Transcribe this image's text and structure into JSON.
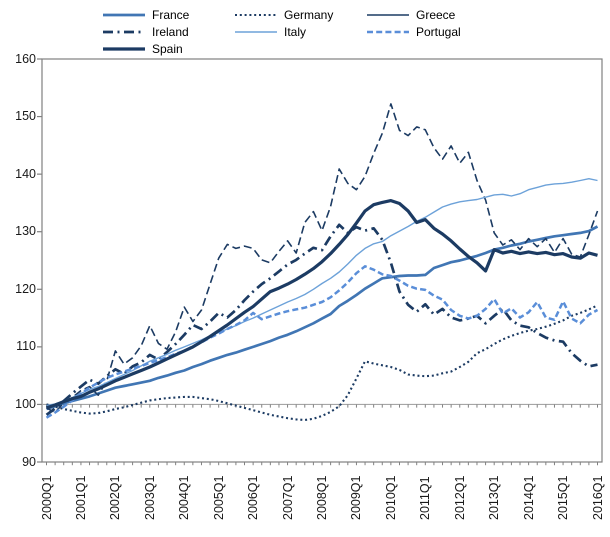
{
  "chart_data": {
    "type": "line",
    "title": "",
    "xlabel": "",
    "ylabel": "",
    "ylim": [
      90,
      160
    ],
    "y_ticks": [
      160,
      150,
      140,
      130,
      120,
      110,
      100,
      90
    ],
    "baseline_gridline": 100,
    "grid": "horizontal-at-100-only",
    "legend_position": "top",
    "x_unit": "quarter",
    "x_range": [
      "2000Q1",
      "2016Q1"
    ],
    "x_tick_labels": [
      "2000Q1",
      "2001Q1",
      "2002Q1",
      "2003Q1",
      "2004Q1",
      "2005Q1",
      "2006Q1",
      "2007Q1",
      "2008Q1",
      "2009Q1",
      "2010Q1",
      "2011Q1",
      "2012Q1",
      "2013Q1",
      "2014Q1",
      "2015Q1",
      "2016Q1"
    ],
    "axis_color": "#808080",
    "gridline_color": "#a6a6a6",
    "series": [
      {
        "name": "France",
        "color": "#4176b4",
        "width": 2.7,
        "dash": "solid",
        "legend_dash": "solid",
        "values": [
          99.2,
          99.7,
          100.2,
          100.6,
          101.0,
          101.4,
          101.9,
          102.4,
          102.9,
          103.2,
          103.5,
          103.8,
          104.1,
          104.6,
          105.0,
          105.5,
          105.9,
          106.5,
          107.0,
          107.6,
          108.1,
          108.6,
          109.0,
          109.5,
          110.0,
          110.5,
          111.0,
          111.6,
          112.1,
          112.7,
          113.4,
          114.1,
          114.9,
          115.7,
          117.1,
          118.0,
          119.0,
          120.1,
          121.0,
          121.9,
          122.1,
          122.3,
          122.4,
          122.4,
          122.5,
          123.7,
          124.2,
          124.7,
          125.0,
          125.4,
          125.8,
          126.3,
          126.9,
          127.2,
          127.6,
          127.9,
          128.3,
          128.6,
          128.9,
          129.2,
          129.4,
          129.6,
          129.8,
          130.1,
          130.9
        ]
      },
      {
        "name": "Germany",
        "color": "#1c3b63",
        "width": 2.1,
        "dash": "dotted",
        "legend_dash": "dotted",
        "values": [
          100.0,
          99.6,
          99.2,
          98.9,
          98.6,
          98.4,
          98.5,
          98.8,
          99.2,
          99.5,
          99.9,
          100.3,
          100.7,
          100.9,
          101.1,
          101.2,
          101.3,
          101.3,
          101.1,
          100.9,
          100.6,
          100.2,
          99.8,
          99.4,
          99.0,
          98.6,
          98.2,
          97.9,
          97.6,
          97.4,
          97.3,
          97.5,
          98.0,
          98.7,
          99.7,
          101.6,
          104.5,
          107.5,
          107.1,
          106.8,
          106.5,
          106.0,
          105.2,
          105.0,
          104.9,
          105.0,
          105.4,
          105.7,
          106.5,
          107.4,
          108.9,
          109.6,
          110.5,
          111.3,
          111.9,
          112.4,
          112.8,
          113.1,
          113.5,
          114.0,
          114.6,
          115.4,
          115.9,
          116.5,
          117.2
        ]
      },
      {
        "name": "Greece",
        "color": "#1c3b63",
        "width": 1.6,
        "dash": "longdash",
        "legend_dash": "solid",
        "values": [
          99.4,
          98.6,
          100.3,
          101.2,
          102.4,
          103.1,
          101.6,
          104.1,
          109.3,
          107.0,
          108.1,
          110.2,
          113.7,
          110.6,
          109.6,
          112.6,
          116.9,
          114.4,
          116.4,
          120.9,
          125.4,
          127.8,
          127.1,
          127.5,
          127.1,
          125.1,
          124.6,
          126.6,
          128.4,
          126.3,
          131.6,
          133.5,
          130.2,
          134.4,
          140.9,
          138.4,
          137.3,
          139.6,
          143.6,
          147.1,
          152.2,
          147.6,
          146.7,
          148.2,
          147.7,
          144.6,
          142.6,
          144.9,
          141.9,
          143.8,
          138.9,
          135.5,
          129.8,
          127.7,
          128.6,
          126.9,
          128.8,
          127.4,
          128.8,
          126.4,
          128.8,
          126.1,
          125.6,
          129.5,
          133.6
        ]
      },
      {
        "name": "Ireland",
        "color": "#1c3b63",
        "width": 2.7,
        "dash": "dashdot",
        "legend_dash": "dashdot",
        "values": [
          98.2,
          99.3,
          100.6,
          101.9,
          103.1,
          104.3,
          103.6,
          104.9,
          106.1,
          105.3,
          106.6,
          107.3,
          108.6,
          107.8,
          109.1,
          110.5,
          112.1,
          113.8,
          113.1,
          114.4,
          115.9,
          115.1,
          116.4,
          118.1,
          119.6,
          120.9,
          121.9,
          123.1,
          124.3,
          125.1,
          126.2,
          127.2,
          126.8,
          129.2,
          131.2,
          129.8,
          130.8,
          130.2,
          130.6,
          128.6,
          124.6,
          119.6,
          117.3,
          116.1,
          117.4,
          115.6,
          116.6,
          115.1,
          114.6,
          114.9,
          115.4,
          114.1,
          115.4,
          116.6,
          114.6,
          113.7,
          113.4,
          112.4,
          111.6,
          111.1,
          110.9,
          108.9,
          107.6,
          106.6,
          106.9
        ]
      },
      {
        "name": "Italy",
        "color": "#6da2d9",
        "width": 1.4,
        "dash": "solid",
        "legend_dash": "solid",
        "values": [
          99.8,
          100.1,
          100.6,
          101.2,
          101.9,
          102.6,
          103.1,
          103.8,
          104.5,
          105.2,
          105.9,
          106.7,
          107.5,
          108.1,
          108.7,
          109.4,
          110.0,
          110.6,
          111.2,
          111.9,
          112.5,
          113.1,
          113.7,
          114.4,
          115.0,
          115.7,
          116.4,
          117.1,
          117.8,
          118.4,
          119.1,
          120.0,
          121.0,
          121.9,
          123.0,
          124.4,
          125.9,
          127.1,
          127.9,
          128.3,
          129.3,
          130.1,
          130.9,
          131.8,
          132.5,
          133.4,
          134.3,
          134.8,
          135.2,
          135.4,
          135.6,
          136.0,
          136.4,
          136.5,
          136.2,
          136.6,
          137.3,
          137.7,
          138.1,
          138.3,
          138.4,
          138.6,
          138.9,
          139.2,
          138.9
        ]
      },
      {
        "name": "Portugal",
        "color": "#5a8ed8",
        "width": 2.5,
        "dash": "dashed",
        "legend_dash": "dashed",
        "values": [
          97.7,
          98.6,
          99.6,
          100.7,
          101.9,
          102.9,
          103.8,
          104.6,
          105.2,
          105.7,
          106.2,
          106.7,
          107.2,
          107.7,
          108.2,
          108.8,
          109.3,
          110.1,
          110.8,
          111.6,
          112.3,
          113.1,
          113.8,
          114.6,
          115.9,
          114.8,
          115.3,
          115.8,
          116.2,
          116.5,
          116.8,
          117.3,
          117.8,
          118.6,
          119.8,
          121.2,
          122.8,
          124.0,
          123.4,
          122.6,
          122.3,
          121.5,
          120.6,
          120.1,
          119.9,
          118.9,
          118.2,
          116.4,
          115.4,
          114.9,
          115.4,
          116.6,
          118.3,
          115.8,
          116.7,
          115.1,
          116.0,
          117.8,
          115.1,
          114.7,
          117.9,
          114.9,
          114.1,
          115.6,
          116.4
        ]
      },
      {
        "name": "Spain",
        "color": "#1c3b63",
        "width": 3.2,
        "dash": "solid",
        "legend_dash": "solid",
        "values": [
          99.4,
          99.9,
          100.5,
          101.0,
          101.4,
          102.1,
          102.7,
          103.4,
          104.1,
          104.7,
          105.3,
          105.9,
          106.5,
          107.2,
          107.9,
          108.6,
          109.3,
          110.0,
          110.9,
          111.8,
          112.8,
          113.8,
          114.9,
          116.0,
          117.0,
          118.3,
          119.6,
          120.2,
          120.9,
          121.7,
          122.6,
          123.6,
          124.8,
          126.2,
          127.8,
          129.5,
          131.5,
          133.6,
          134.7,
          135.1,
          135.4,
          134.9,
          133.6,
          131.6,
          132.1,
          130.6,
          129.6,
          128.4,
          127.0,
          125.7,
          124.6,
          123.2,
          126.9,
          126.3,
          126.6,
          126.2,
          126.5,
          126.2,
          126.4,
          126.0,
          126.2,
          125.6,
          125.4,
          126.3,
          125.9
        ]
      }
    ]
  }
}
